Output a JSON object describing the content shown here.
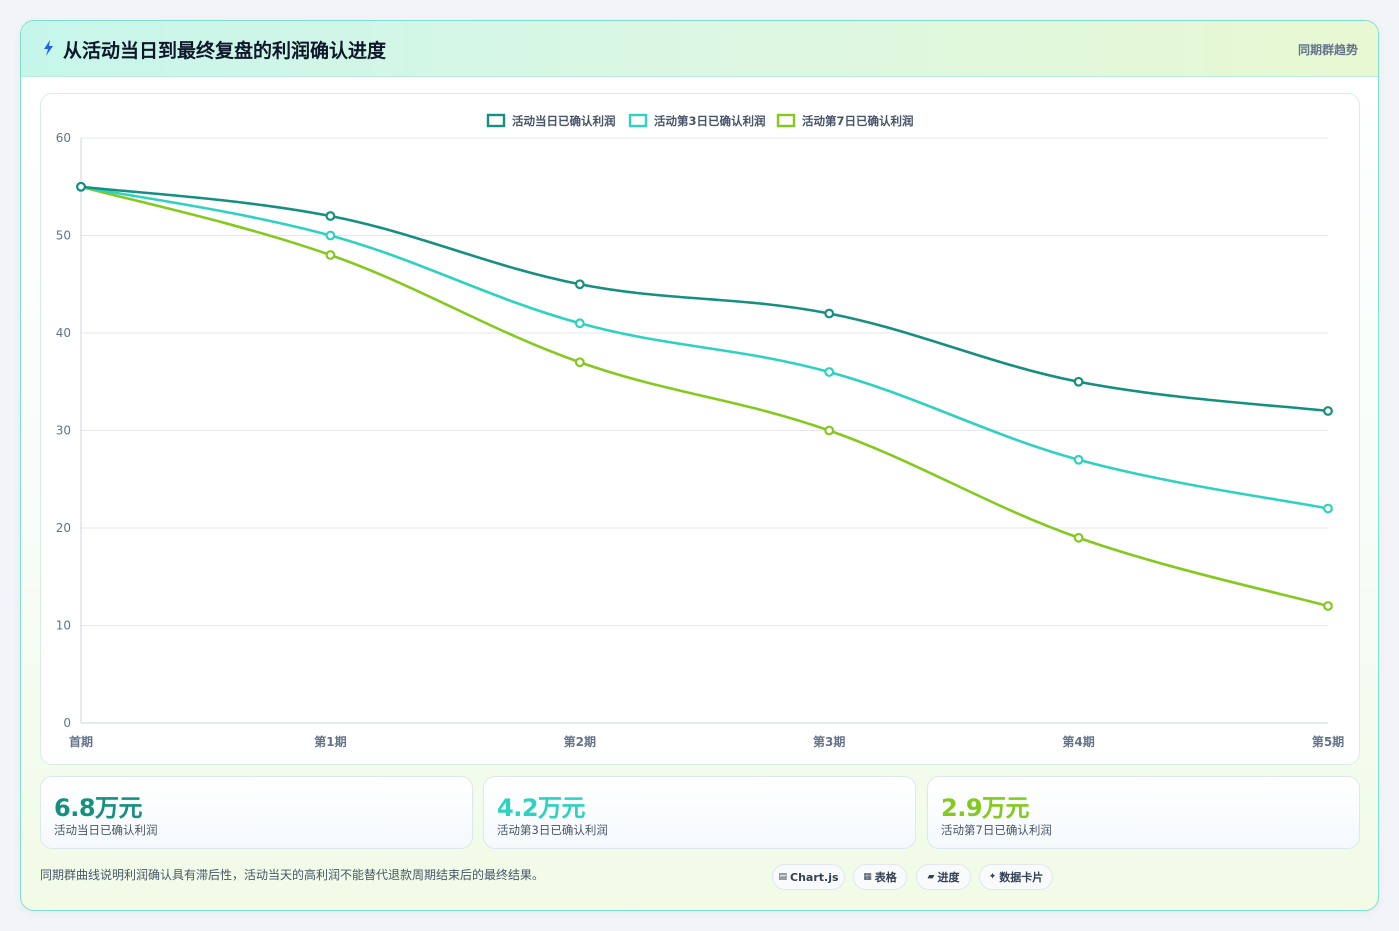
{
  "header": {
    "icon": "bolt-icon",
    "title": "从活动当日到最终复盘的利润确认进度",
    "tag": "同期群趋势"
  },
  "chart_data": {
    "type": "line",
    "categories": [
      "首期",
      "第1期",
      "第2期",
      "第3期",
      "第4期",
      "第5期"
    ],
    "series": [
      {
        "name": "活动当日已确认利润",
        "color": "#158f7f",
        "values": [
          55,
          52,
          45,
          42,
          35,
          32
        ]
      },
      {
        "name": "活动第3日已确认利润",
        "color": "#2fd1c0",
        "values": [
          55,
          50,
          41,
          36,
          27,
          22
        ]
      },
      {
        "name": "活动第7日已确认利润",
        "color": "#84c91e",
        "values": [
          55,
          48,
          37,
          30,
          19,
          12
        ]
      }
    ],
    "ylim": [
      0,
      60
    ],
    "yticks": [
      0,
      10,
      20,
      30,
      40,
      50,
      60
    ],
    "grid": true,
    "legend": "top-center",
    "smooth": true
  },
  "stats": [
    {
      "value": "6.8万元",
      "label": "活动当日已确认利润",
      "color": "#158f7f"
    },
    {
      "value": "4.2万元",
      "label": "活动第3日已确认利润",
      "color": "#2fd1c0"
    },
    {
      "value": "2.9万元",
      "label": "活动第7日已确认利润",
      "color": "#84c91e"
    }
  ],
  "footnote": "同期群曲线说明利润确认具有滞后性，活动当天的高利润不能替代退款周期结束后的最终结果。",
  "pills": [
    {
      "icon": "chart-icon",
      "glyph": "▤",
      "label": "Chart.js"
    },
    {
      "icon": "table-icon",
      "glyph": "▦",
      "label": "表格"
    },
    {
      "icon": "progress-icon",
      "glyph": "▰",
      "label": "进度"
    },
    {
      "icon": "sparkle-icon",
      "glyph": "✦",
      "label": "数据卡片"
    }
  ]
}
